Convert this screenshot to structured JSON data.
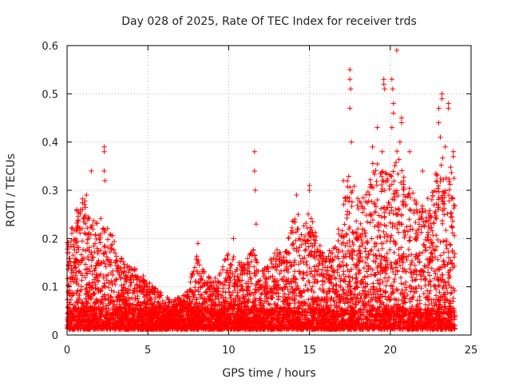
{
  "chart_data": {
    "type": "scatter",
    "title": "Day 028 of 2025, Rate Of TEC Index for receiver trds",
    "xlabel": "GPS time / hours",
    "ylabel": "ROTI / TECUs",
    "xlim": [
      0,
      25
    ],
    "ylim": [
      0,
      0.6
    ],
    "x_ticks": [
      0,
      5,
      10,
      15,
      20,
      25
    ],
    "y_ticks": [
      0,
      0.1,
      0.2,
      0.3,
      0.4,
      0.5,
      0.6
    ],
    "x_tick_labels": [
      "0",
      "5",
      "10",
      "15",
      "20",
      "25"
    ],
    "y_tick_labels": [
      "0",
      "0.1",
      "0.2",
      "0.3",
      "0.4",
      "0.5",
      "0.6"
    ],
    "grid": true,
    "marker": "plus",
    "color": "#ff0000",
    "envelope": [
      {
        "x": 0.0,
        "y": 0.18
      },
      {
        "x": 0.5,
        "y": 0.24
      },
      {
        "x": 1.0,
        "y": 0.28
      },
      {
        "x": 1.5,
        "y": 0.22
      },
      {
        "x": 2.0,
        "y": 0.24
      },
      {
        "x": 2.5,
        "y": 0.22
      },
      {
        "x": 3.0,
        "y": 0.18
      },
      {
        "x": 3.5,
        "y": 0.14
      },
      {
        "x": 4.0,
        "y": 0.13
      },
      {
        "x": 4.5,
        "y": 0.12
      },
      {
        "x": 5.0,
        "y": 0.1
      },
      {
        "x": 5.5,
        "y": 0.09
      },
      {
        "x": 6.0,
        "y": 0.07
      },
      {
        "x": 6.5,
        "y": 0.06
      },
      {
        "x": 7.0,
        "y": 0.07
      },
      {
        "x": 7.5,
        "y": 0.08
      },
      {
        "x": 8.0,
        "y": 0.16
      },
      {
        "x": 8.5,
        "y": 0.12
      },
      {
        "x": 9.0,
        "y": 0.1
      },
      {
        "x": 9.5,
        "y": 0.12
      },
      {
        "x": 10.0,
        "y": 0.17
      },
      {
        "x": 10.5,
        "y": 0.14
      },
      {
        "x": 11.0,
        "y": 0.14
      },
      {
        "x": 11.5,
        "y": 0.17
      },
      {
        "x": 12.0,
        "y": 0.12
      },
      {
        "x": 12.5,
        "y": 0.14
      },
      {
        "x": 13.0,
        "y": 0.17
      },
      {
        "x": 13.5,
        "y": 0.16
      },
      {
        "x": 14.0,
        "y": 0.24
      },
      {
        "x": 14.5,
        "y": 0.2
      },
      {
        "x": 15.0,
        "y": 0.26
      },
      {
        "x": 15.5,
        "y": 0.18
      },
      {
        "x": 16.0,
        "y": 0.17
      },
      {
        "x": 16.5,
        "y": 0.17
      },
      {
        "x": 17.0,
        "y": 0.24
      },
      {
        "x": 17.5,
        "y": 0.34
      },
      {
        "x": 18.0,
        "y": 0.27
      },
      {
        "x": 18.5,
        "y": 0.3
      },
      {
        "x": 19.0,
        "y": 0.36
      },
      {
        "x": 19.5,
        "y": 0.33
      },
      {
        "x": 20.0,
        "y": 0.32
      },
      {
        "x": 20.5,
        "y": 0.38
      },
      {
        "x": 21.0,
        "y": 0.3
      },
      {
        "x": 21.5,
        "y": 0.28
      },
      {
        "x": 22.0,
        "y": 0.26
      },
      {
        "x": 22.5,
        "y": 0.28
      },
      {
        "x": 23.0,
        "y": 0.36
      },
      {
        "x": 23.5,
        "y": 0.37
      },
      {
        "x": 24.0,
        "y": 0.32
      }
    ],
    "outliers": [
      {
        "x": 0.6,
        "y": 0.26
      },
      {
        "x": 1.2,
        "y": 0.29
      },
      {
        "x": 1.5,
        "y": 0.34
      },
      {
        "x": 2.3,
        "y": 0.39
      },
      {
        "x": 2.3,
        "y": 0.38
      },
      {
        "x": 2.35,
        "y": 0.32
      },
      {
        "x": 2.3,
        "y": 0.34
      },
      {
        "x": 8.1,
        "y": 0.19
      },
      {
        "x": 10.3,
        "y": 0.2
      },
      {
        "x": 11.6,
        "y": 0.38
      },
      {
        "x": 11.6,
        "y": 0.34
      },
      {
        "x": 11.65,
        "y": 0.3
      },
      {
        "x": 11.7,
        "y": 0.23
      },
      {
        "x": 14.2,
        "y": 0.29
      },
      {
        "x": 14.3,
        "y": 0.25
      },
      {
        "x": 14.3,
        "y": 0.22
      },
      {
        "x": 15.0,
        "y": 0.31
      },
      {
        "x": 15.0,
        "y": 0.3
      },
      {
        "x": 17.1,
        "y": 0.32
      },
      {
        "x": 17.5,
        "y": 0.55
      },
      {
        "x": 17.5,
        "y": 0.53
      },
      {
        "x": 17.55,
        "y": 0.51
      },
      {
        "x": 17.5,
        "y": 0.47
      },
      {
        "x": 17.6,
        "y": 0.4
      },
      {
        "x": 18.9,
        "y": 0.39
      },
      {
        "x": 19.2,
        "y": 0.43
      },
      {
        "x": 19.6,
        "y": 0.53
      },
      {
        "x": 19.6,
        "y": 0.52
      },
      {
        "x": 19.65,
        "y": 0.51
      },
      {
        "x": 19.5,
        "y": 0.38
      },
      {
        "x": 20.1,
        "y": 0.53
      },
      {
        "x": 20.15,
        "y": 0.51
      },
      {
        "x": 20.2,
        "y": 0.48
      },
      {
        "x": 20.2,
        "y": 0.46
      },
      {
        "x": 20.1,
        "y": 0.43
      },
      {
        "x": 20.4,
        "y": 0.59
      },
      {
        "x": 20.7,
        "y": 0.45
      },
      {
        "x": 20.7,
        "y": 0.44
      },
      {
        "x": 20.6,
        "y": 0.4
      },
      {
        "x": 21.2,
        "y": 0.38
      },
      {
        "x": 22.0,
        "y": 0.34
      },
      {
        "x": 23.0,
        "y": 0.47
      },
      {
        "x": 23.0,
        "y": 0.44
      },
      {
        "x": 23.2,
        "y": 0.5
      },
      {
        "x": 23.2,
        "y": 0.49
      },
      {
        "x": 23.6,
        "y": 0.48
      },
      {
        "x": 23.6,
        "y": 0.47
      },
      {
        "x": 23.1,
        "y": 0.41
      },
      {
        "x": 23.4,
        "y": 0.39
      },
      {
        "x": 23.9,
        "y": 0.38
      },
      {
        "x": 23.9,
        "y": 0.37
      }
    ]
  }
}
